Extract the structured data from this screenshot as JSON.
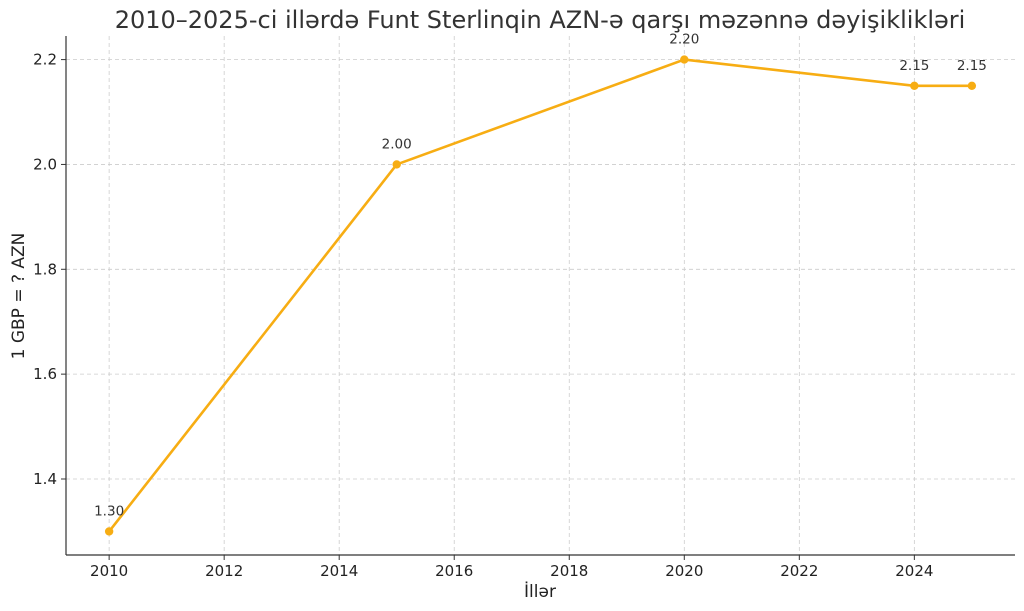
{
  "chart_data": {
    "type": "line",
    "title": "2010–2025-ci illərdə Funt Sterlinqin AZN-ə qarşı məzənnə dəyişiklikləri",
    "xlabel": "İllər",
    "ylabel": "1 GBP = ? AZN",
    "x": [
      2010,
      2015,
      2020,
      2024,
      2025
    ],
    "series": [
      {
        "values": [
          1.3,
          2.0,
          2.2,
          2.15,
          2.15
        ],
        "labels": [
          "1.30",
          "2.00",
          "2.20",
          "2.15",
          "2.15"
        ],
        "color": "#f7ad13"
      }
    ],
    "xticks": [
      2010,
      2012,
      2014,
      2016,
      2018,
      2020,
      2022,
      2024
    ],
    "xtick_labels": [
      "2010",
      "2012",
      "2014",
      "2016",
      "2018",
      "2020",
      "2022",
      "2024"
    ],
    "yticks": [
      1.4,
      1.6,
      1.8,
      2.0,
      2.2
    ],
    "ytick_labels": [
      "1.4",
      "1.6",
      "1.8",
      "2.0",
      "2.2"
    ],
    "xlim": [
      2009.25,
      2025.75
    ],
    "ylim": [
      1.255,
      2.245
    ],
    "grid": true,
    "legend": "none"
  }
}
